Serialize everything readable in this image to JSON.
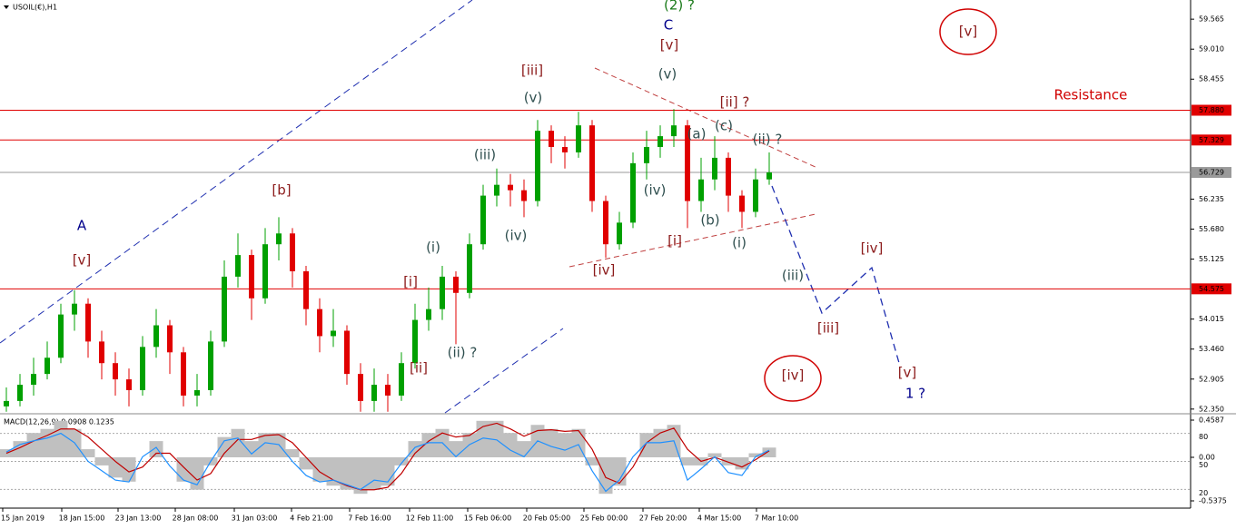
{
  "chart_data": [
    {
      "type": "candlestick",
      "title": "USOIL(€),H1",
      "up_color": "#00a000",
      "down_color": "#e00000",
      "ylim": [
        52.28,
        59.92
      ],
      "yticks": [
        59.565,
        {
          "value": 59.01,
          "label": "59.010"
        },
        58.455,
        56.235,
        {
          "value": 55.68,
          "label": "55.680"
        },
        55.125,
        54.015,
        {
          "value": 53.46,
          "label": "53.460"
        },
        52.905,
        {
          "value": 52.35,
          "label": "52.350"
        }
      ],
      "levels": [
        {
          "value": 57.88,
          "label": "57.880",
          "color": "#e00000"
        },
        {
          "value": 57.329,
          "color": "#e00000"
        },
        {
          "value": 56.729,
          "color": "#9a9a9a"
        },
        {
          "value": 54.575,
          "color": "#e00000"
        }
      ],
      "x_labels": [
        "15 Jan 2019",
        "18 Jan 15:00",
        "23 Jan 13:00",
        "28 Jan 08:00",
        "31 Jan 03:00",
        "4 Feb 21:00",
        "7 Feb 16:00",
        "12 Feb 11:00",
        "15 Feb 06:00",
        "20 Feb 05:00",
        "25 Feb 00:00",
        "27 Feb 20:00",
        "4 Mar 15:00",
        "7 Mar 10:00"
      ],
      "open": [
        52.4,
        52.5,
        52.8,
        53.0,
        53.3,
        54.1,
        54.3,
        53.6,
        53.2,
        52.9,
        52.7,
        53.5,
        53.9,
        53.4,
        52.6,
        52.7,
        53.6,
        54.8,
        55.2,
        54.4,
        55.4,
        55.6,
        54.9,
        54.2,
        53.7,
        53.8,
        53.0,
        52.5,
        52.8,
        52.6,
        53.2,
        54.0,
        54.2,
        54.8,
        54.5,
        55.4,
        56.3,
        56.5,
        56.4,
        56.2,
        57.5,
        57.2,
        57.1,
        57.6,
        56.2,
        55.4,
        55.8,
        56.9,
        57.2,
        57.4,
        57.6,
        56.2,
        56.6,
        57.0,
        56.3,
        56.0,
        56.6
      ],
      "high": [
        52.75,
        53.0,
        53.3,
        53.6,
        54.3,
        54.55,
        54.4,
        53.8,
        53.4,
        53.1,
        53.7,
        54.2,
        54.0,
        53.5,
        53.0,
        53.8,
        55.1,
        55.6,
        55.3,
        55.7,
        55.9,
        55.7,
        55.0,
        54.4,
        54.2,
        53.9,
        53.2,
        53.1,
        53.0,
        53.4,
        54.3,
        54.6,
        55.0,
        54.9,
        55.6,
        56.5,
        56.8,
        56.7,
        56.6,
        57.7,
        57.6,
        57.4,
        57.85,
        57.7,
        56.3,
        56.0,
        57.1,
        57.5,
        57.6,
        57.9,
        57.7,
        57.0,
        57.4,
        57.1,
        56.4,
        56.8,
        57.1
      ],
      "low": [
        52.3,
        52.4,
        52.6,
        52.9,
        53.2,
        53.8,
        53.3,
        52.9,
        52.6,
        52.4,
        52.6,
        53.3,
        53.0,
        52.4,
        52.4,
        52.6,
        53.5,
        54.6,
        54.0,
        54.3,
        55.1,
        54.6,
        53.9,
        53.4,
        53.5,
        52.8,
        52.3,
        52.3,
        52.3,
        52.5,
        53.1,
        53.8,
        54.0,
        53.55,
        54.4,
        55.3,
        56.1,
        56.1,
        55.9,
        56.1,
        56.9,
        56.8,
        57.0,
        56.0,
        55.15,
        55.3,
        55.7,
        56.6,
        57.0,
        57.2,
        55.7,
        56.0,
        56.4,
        56.0,
        55.7,
        55.9,
        56.5
      ],
      "close": [
        52.5,
        52.8,
        53.0,
        53.3,
        54.1,
        54.3,
        53.6,
        53.2,
        52.9,
        52.7,
        53.5,
        53.9,
        53.4,
        52.6,
        52.7,
        53.6,
        54.8,
        55.2,
        54.4,
        55.4,
        55.6,
        54.9,
        54.2,
        53.7,
        53.8,
        53.0,
        52.5,
        52.8,
        52.6,
        53.2,
        54.0,
        54.2,
        54.8,
        54.5,
        55.4,
        56.3,
        56.5,
        56.4,
        56.2,
        57.5,
        57.2,
        57.1,
        57.6,
        56.2,
        55.4,
        55.8,
        56.9,
        57.2,
        57.4,
        57.6,
        56.2,
        56.6,
        57.0,
        56.3,
        56.0,
        56.6,
        56.729
      ],
      "annotations": [
        {
          "text": "(2) ?",
          "color": "#1a7a1a"
        },
        {
          "text": "C",
          "color": "#00008b"
        },
        {
          "text": "[v]",
          "color": "#8b1a1a"
        },
        {
          "text": "(v)",
          "color": "#2f4f4f"
        },
        {
          "text": "[iii]",
          "color": "#8b1a1a"
        },
        {
          "text": "(v)",
          "color": "#2f4f4f"
        },
        {
          "text": "[ii] ?",
          "color": "#8b1a1a"
        },
        {
          "text": "(c)",
          "color": "#2f4f4f"
        },
        {
          "text": "(a)",
          "color": "#2f4f4f"
        },
        {
          "text": "(ii) ?",
          "color": "#2f4f4f"
        },
        {
          "text": "(iii)",
          "color": "#2f4f4f"
        },
        {
          "text": "(iv)",
          "color": "#2f4f4f"
        },
        {
          "text": "[b]",
          "color": "#8b1a1a"
        },
        {
          "text": "(b)",
          "color": "#2f4f4f"
        },
        {
          "text": "A",
          "color": "#00008b"
        },
        {
          "text": "(iv)",
          "color": "#2f4f4f"
        },
        {
          "text": "[i]",
          "color": "#8b1a1a"
        },
        {
          "text": "(i)",
          "color": "#2f4f4f"
        },
        {
          "text": "(i)",
          "color": "#2f4f4f"
        },
        {
          "text": "[iv]",
          "color": "#8b1a1a"
        },
        {
          "text": "[v]",
          "color": "#8b1a1a"
        },
        {
          "text": "[iv]",
          "color": "#8b1a1a"
        },
        {
          "text": "(iii)",
          "color": "#2f4f4f"
        },
        {
          "text": "[i]",
          "color": "#8b1a1a"
        },
        {
          "text": "[iii]",
          "color": "#8b1a1a"
        },
        {
          "text": "(ii) ?",
          "color": "#2f4f4f"
        },
        {
          "text": "[ii]",
          "color": "#8b1a1a"
        },
        {
          "text": "[v]",
          "color": "#8b1a1a"
        },
        {
          "text": "[iv]",
          "color": "#8b1a1a"
        },
        {
          "text": "1 ?",
          "color": "#00008b"
        },
        {
          "text": "[v]",
          "color": "#8b1a1a"
        },
        {
          "text": "Resistance",
          "color": "#d00000"
        }
      ]
    },
    {
      "type": "macd",
      "title": "MACD(12,26,9) 0.0908 0.1235",
      "ylim": [
        -0.627,
        0.526
      ],
      "yticks": [
        0.4587,
        {
          "value": 0,
          "label": "0.00"
        },
        -0.5375
      ],
      "y2lim": [
        0,
        100
      ],
      "y2ticks": [
        80,
        50,
        20
      ],
      "series": [
        {
          "color": "#c0c0c0",
          "values": [
            0.1,
            0.2,
            0.3,
            0.35,
            0.45,
            0.35,
            0.1,
            -0.1,
            -0.25,
            -0.3,
            0.0,
            0.2,
            0.0,
            -0.3,
            -0.4,
            -0.1,
            0.25,
            0.35,
            0.2,
            0.3,
            0.3,
            0.1,
            -0.15,
            -0.3,
            -0.35,
            -0.4,
            -0.45,
            -0.4,
            -0.35,
            -0.1,
            0.2,
            0.3,
            0.35,
            0.2,
            0.3,
            0.45,
            0.45,
            0.3,
            0.2,
            0.4,
            0.35,
            0.3,
            0.35,
            -0.1,
            -0.45,
            -0.35,
            0.0,
            0.3,
            0.35,
            0.4,
            -0.1,
            -0.1,
            0.05,
            -0.1,
            -0.15,
            0.05,
            0.12
          ]
        },
        {
          "color": "#c00000",
          "values": [
            0.05,
            0.12,
            0.2,
            0.27,
            0.35,
            0.35,
            0.25,
            0.1,
            -0.05,
            -0.18,
            -0.12,
            0.05,
            0.05,
            -0.12,
            -0.28,
            -0.2,
            0.05,
            0.22,
            0.22,
            0.27,
            0.28,
            0.18,
            0.0,
            -0.18,
            -0.28,
            -0.35,
            -0.4,
            -0.4,
            -0.37,
            -0.2,
            0.05,
            0.2,
            0.3,
            0.25,
            0.27,
            0.38,
            0.42,
            0.35,
            0.26,
            0.33,
            0.34,
            0.32,
            0.33,
            0.1,
            -0.25,
            -0.32,
            -0.12,
            0.18,
            0.3,
            0.36,
            0.1,
            -0.05,
            0.0,
            -0.06,
            -0.12,
            -0.03,
            0.08
          ]
        },
        {
          "color": "#1e90ff",
          "axis": "y2",
          "values": [
            60,
            68,
            72,
            75,
            80,
            70,
            50,
            40,
            30,
            28,
            55,
            65,
            45,
            30,
            25,
            50,
            72,
            75,
            58,
            70,
            68,
            50,
            35,
            28,
            30,
            25,
            20,
            30,
            28,
            48,
            65,
            70,
            70,
            55,
            68,
            75,
            73,
            62,
            55,
            72,
            66,
            62,
            68,
            40,
            18,
            30,
            55,
            70,
            70,
            72,
            30,
            42,
            55,
            38,
            35,
            55,
            62
          ]
        }
      ]
    }
  ]
}
